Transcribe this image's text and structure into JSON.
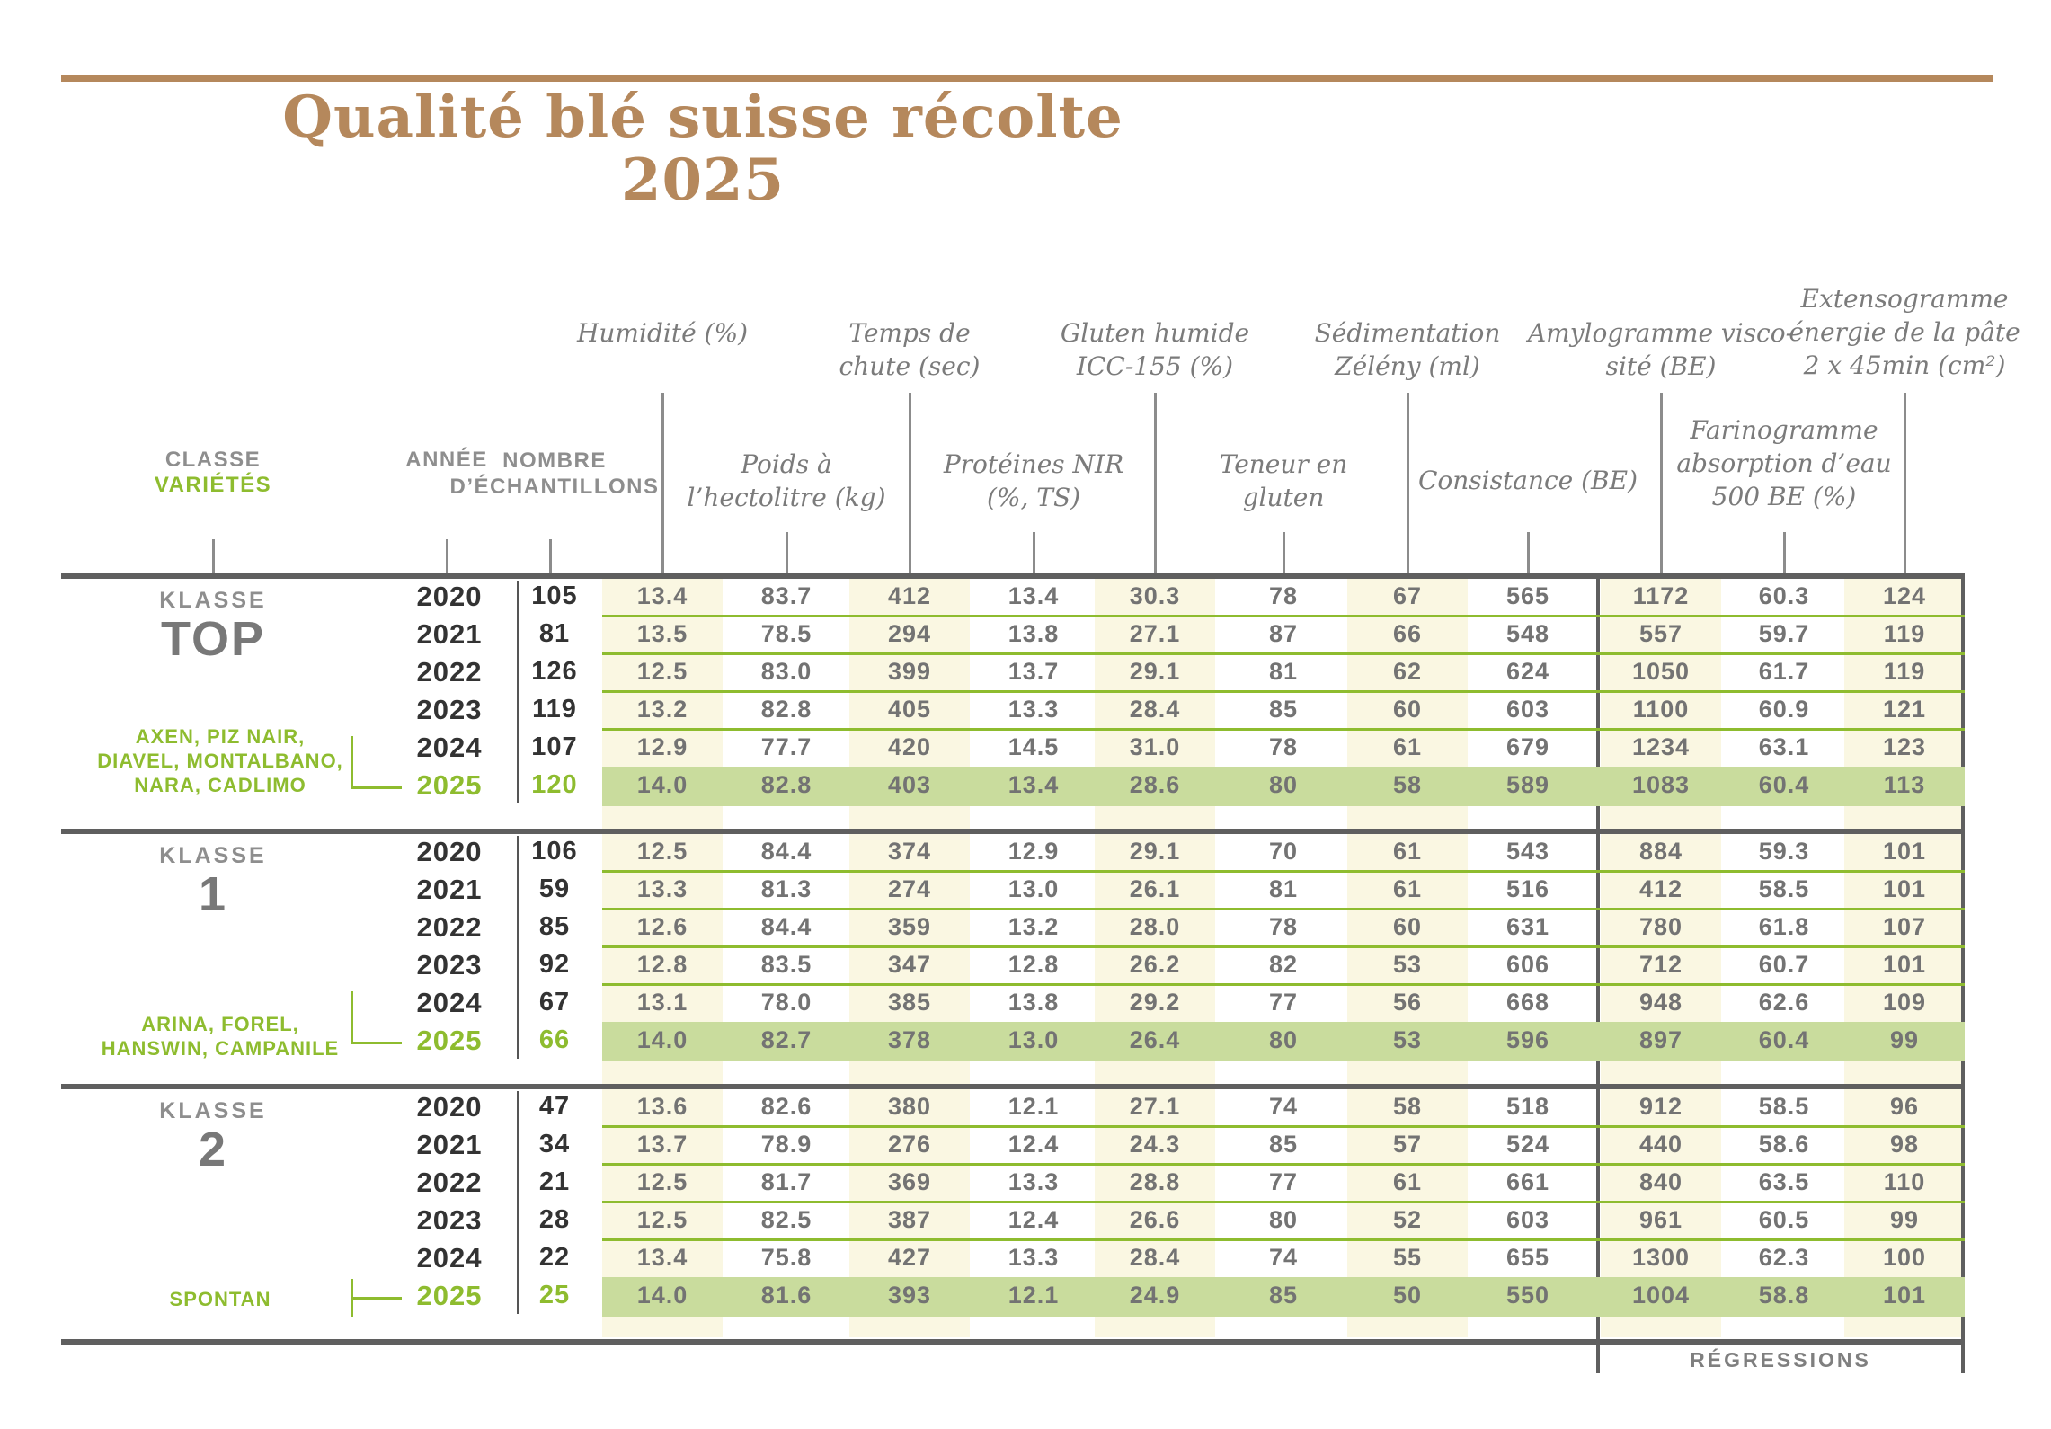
{
  "title": "Qualité blé suisse récolte 2025",
  "colors": {
    "accent_green": "#8ebc2f",
    "highlight_row_green": "#c9dc9d",
    "stripe_cream": "#faf7e2",
    "title_tan": "#b5885c",
    "rule_dark": "#5f5f5f",
    "value_gray": "#737373",
    "year_dark": "#333333"
  },
  "header": {
    "left": {
      "classe": "CLASSE",
      "varietes": "VARIÉTÉS",
      "annee": "ANNÉE",
      "nombre": "NOMBRE\nD’ÉCHANTILLONS"
    },
    "tier1": [
      {
        "label": "Humidité (%)"
      },
      {
        "label": "Temps de\nchute (sec)"
      },
      {
        "label": "Gluten humide\nICC-155 (%)"
      },
      {
        "label": "Sédimentation\nZélény (ml)"
      },
      {
        "label": "Amylogramme visco-\nsité (BE)"
      },
      {
        "label": "Extensogramme\nénergie de la pâte\n2 x 45min (cm²)"
      }
    ],
    "tier2": [
      {
        "label": "Poids à\nl’hectolitre (kg)"
      },
      {
        "label": "Protéines NIR\n(%, TS)"
      },
      {
        "label": "Teneur en\ngluten"
      },
      {
        "label": "Consistance (BE)"
      },
      {
        "label": "Farinogramme\nabsorption d’eau\n500 BE (%)"
      }
    ]
  },
  "blocks": [
    {
      "klasse_label": "KLASSE",
      "klasse": "TOP",
      "varieties": "AXEN, PIZ NAIR,\nDIAVEL, MONTALBANO,\nNARA, CADLIMO",
      "rows": [
        {
          "year": "2020",
          "n": "105",
          "highlight": false,
          "values": [
            "13.4",
            "83.7",
            "412",
            "13.4",
            "30.3",
            "78",
            "67",
            "565",
            "1172",
            "60.3",
            "124"
          ]
        },
        {
          "year": "2021",
          "n": "81",
          "highlight": false,
          "values": [
            "13.5",
            "78.5",
            "294",
            "13.8",
            "27.1",
            "87",
            "66",
            "548",
            "557",
            "59.7",
            "119"
          ]
        },
        {
          "year": "2022",
          "n": "126",
          "highlight": false,
          "values": [
            "12.5",
            "83.0",
            "399",
            "13.7",
            "29.1",
            "81",
            "62",
            "624",
            "1050",
            "61.7",
            "119"
          ]
        },
        {
          "year": "2023",
          "n": "119",
          "highlight": false,
          "values": [
            "13.2",
            "82.8",
            "405",
            "13.3",
            "28.4",
            "85",
            "60",
            "603",
            "1100",
            "60.9",
            "121"
          ]
        },
        {
          "year": "2024",
          "n": "107",
          "highlight": false,
          "values": [
            "12.9",
            "77.7",
            "420",
            "14.5",
            "31.0",
            "78",
            "61",
            "679",
            "1234",
            "63.1",
            "123"
          ]
        },
        {
          "year": "2025",
          "n": "120",
          "highlight": true,
          "values": [
            "14.0",
            "82.8",
            "403",
            "13.4",
            "28.6",
            "80",
            "58",
            "589",
            "1083",
            "60.4",
            "113"
          ]
        }
      ]
    },
    {
      "klasse_label": "KLASSE",
      "klasse": "1",
      "varieties": "ARINA, FOREL,\nHANSWIN, CAMPANILE",
      "rows": [
        {
          "year": "2020",
          "n": "106",
          "highlight": false,
          "values": [
            "12.5",
            "84.4",
            "374",
            "12.9",
            "29.1",
            "70",
            "61",
            "543",
            "884",
            "59.3",
            "101"
          ]
        },
        {
          "year": "2021",
          "n": "59",
          "highlight": false,
          "values": [
            "13.3",
            "81.3",
            "274",
            "13.0",
            "26.1",
            "81",
            "61",
            "516",
            "412",
            "58.5",
            "101"
          ]
        },
        {
          "year": "2022",
          "n": "85",
          "highlight": false,
          "values": [
            "12.6",
            "84.4",
            "359",
            "13.2",
            "28.0",
            "78",
            "60",
            "631",
            "780",
            "61.8",
            "107"
          ]
        },
        {
          "year": "2023",
          "n": "92",
          "highlight": false,
          "values": [
            "12.8",
            "83.5",
            "347",
            "12.8",
            "26.2",
            "82",
            "53",
            "606",
            "712",
            "60.7",
            "101"
          ]
        },
        {
          "year": "2024",
          "n": "67",
          "highlight": false,
          "values": [
            "13.1",
            "78.0",
            "385",
            "13.8",
            "29.2",
            "77",
            "56",
            "668",
            "948",
            "62.6",
            "109"
          ]
        },
        {
          "year": "2025",
          "n": "66",
          "highlight": true,
          "values": [
            "14.0",
            "82.7",
            "378",
            "13.0",
            "26.4",
            "80",
            "53",
            "596",
            "897",
            "60.4",
            "99"
          ]
        }
      ]
    },
    {
      "klasse_label": "KLASSE",
      "klasse": "2",
      "varieties": "SPONTAN",
      "rows": [
        {
          "year": "2020",
          "n": "47",
          "highlight": false,
          "values": [
            "13.6",
            "82.6",
            "380",
            "12.1",
            "27.1",
            "74",
            "58",
            "518",
            "912",
            "58.5",
            "96"
          ]
        },
        {
          "year": "2021",
          "n": "34",
          "highlight": false,
          "values": [
            "13.7",
            "78.9",
            "276",
            "12.4",
            "24.3",
            "85",
            "57",
            "524",
            "440",
            "58.6",
            "98"
          ]
        },
        {
          "year": "2022",
          "n": "21",
          "highlight": false,
          "values": [
            "12.5",
            "81.7",
            "369",
            "13.3",
            "28.8",
            "77",
            "61",
            "661",
            "840",
            "63.5",
            "110"
          ]
        },
        {
          "year": "2023",
          "n": "28",
          "highlight": false,
          "values": [
            "12.5",
            "82.5",
            "387",
            "12.4",
            "26.6",
            "80",
            "52",
            "603",
            "961",
            "60.5",
            "99"
          ]
        },
        {
          "year": "2024",
          "n": "22",
          "highlight": false,
          "values": [
            "13.4",
            "75.8",
            "427",
            "13.3",
            "28.4",
            "74",
            "55",
            "655",
            "1300",
            "62.3",
            "100"
          ]
        },
        {
          "year": "2025",
          "n": "25",
          "highlight": true,
          "values": [
            "14.0",
            "81.6",
            "393",
            "12.1",
            "24.9",
            "85",
            "50",
            "550",
            "1004",
            "58.8",
            "101"
          ]
        }
      ]
    }
  ],
  "footer": {
    "regressions": "RÉGRESSIONS"
  },
  "chart_data": {
    "type": "table",
    "title": "Qualité blé suisse récolte 2025",
    "columns": [
      "Classe",
      "Année",
      "Nombre d'échantillons",
      "Humidité (%)",
      "Poids à l'hectolitre (kg)",
      "Temps de chute (sec)",
      "Protéines NIR (%, TS)",
      "Gluten humide ICC-155 (%)",
      "Teneur en gluten",
      "Sédimentation Zélény (ml)",
      "Consistance (BE)",
      "Amylogramme viscosité (BE)",
      "Farinogramme absorption d'eau 500 BE (%)",
      "Extensogramme énergie de la pâte 2 x 45min (cm²)"
    ],
    "rows": [
      [
        "TOP",
        2020,
        105,
        13.4,
        83.7,
        412,
        13.4,
        30.3,
        78,
        67,
        565,
        1172,
        60.3,
        124
      ],
      [
        "TOP",
        2021,
        81,
        13.5,
        78.5,
        294,
        13.8,
        27.1,
        87,
        66,
        548,
        557,
        59.7,
        119
      ],
      [
        "TOP",
        2022,
        126,
        12.5,
        83.0,
        399,
        13.7,
        29.1,
        81,
        62,
        624,
        1050,
        61.7,
        119
      ],
      [
        "TOP",
        2023,
        119,
        13.2,
        82.8,
        405,
        13.3,
        28.4,
        85,
        60,
        603,
        1100,
        60.9,
        121
      ],
      [
        "TOP",
        2024,
        107,
        12.9,
        77.7,
        420,
        14.5,
        31.0,
        78,
        61,
        679,
        1234,
        63.1,
        123
      ],
      [
        "TOP",
        2025,
        120,
        14.0,
        82.8,
        403,
        13.4,
        28.6,
        80,
        58,
        589,
        1083,
        60.4,
        113
      ],
      [
        "1",
        2020,
        106,
        12.5,
        84.4,
        374,
        12.9,
        29.1,
        70,
        61,
        543,
        884,
        59.3,
        101
      ],
      [
        "1",
        2021,
        59,
        13.3,
        81.3,
        274,
        13.0,
        26.1,
        81,
        61,
        516,
        412,
        58.5,
        101
      ],
      [
        "1",
        2022,
        85,
        12.6,
        84.4,
        359,
        13.2,
        28.0,
        78,
        60,
        631,
        780,
        61.8,
        107
      ],
      [
        "1",
        2023,
        92,
        12.8,
        83.5,
        347,
        12.8,
        26.2,
        82,
        53,
        606,
        712,
        60.7,
        101
      ],
      [
        "1",
        2024,
        67,
        13.1,
        78.0,
        385,
        13.8,
        29.2,
        77,
        56,
        668,
        948,
        62.6,
        109
      ],
      [
        "1",
        2025,
        66,
        14.0,
        82.7,
        378,
        13.0,
        26.4,
        80,
        53,
        596,
        897,
        60.4,
        99
      ],
      [
        "2",
        2020,
        47,
        13.6,
        82.6,
        380,
        12.1,
        27.1,
        74,
        58,
        518,
        912,
        58.5,
        96
      ],
      [
        "2",
        2021,
        34,
        13.7,
        78.9,
        276,
        12.4,
        24.3,
        85,
        57,
        524,
        440,
        58.6,
        98
      ],
      [
        "2",
        2022,
        21,
        12.5,
        81.7,
        369,
        13.3,
        28.8,
        77,
        61,
        661,
        840,
        63.5,
        110
      ],
      [
        "2",
        2023,
        28,
        12.5,
        82.5,
        387,
        12.4,
        26.6,
        80,
        52,
        603,
        961,
        60.5,
        99
      ],
      [
        "2",
        2024,
        22,
        13.4,
        75.8,
        427,
        13.3,
        28.4,
        74,
        55,
        655,
        1300,
        62.3,
        100
      ],
      [
        "2",
        2025,
        25,
        14.0,
        81.6,
        393,
        12.1,
        24.9,
        85,
        50,
        550,
        1004,
        58.8,
        101
      ]
    ],
    "notes": "Rows for year 2025 are highlighted green; last three columns are grouped in a box labelled RÉGRESSIONS"
  }
}
